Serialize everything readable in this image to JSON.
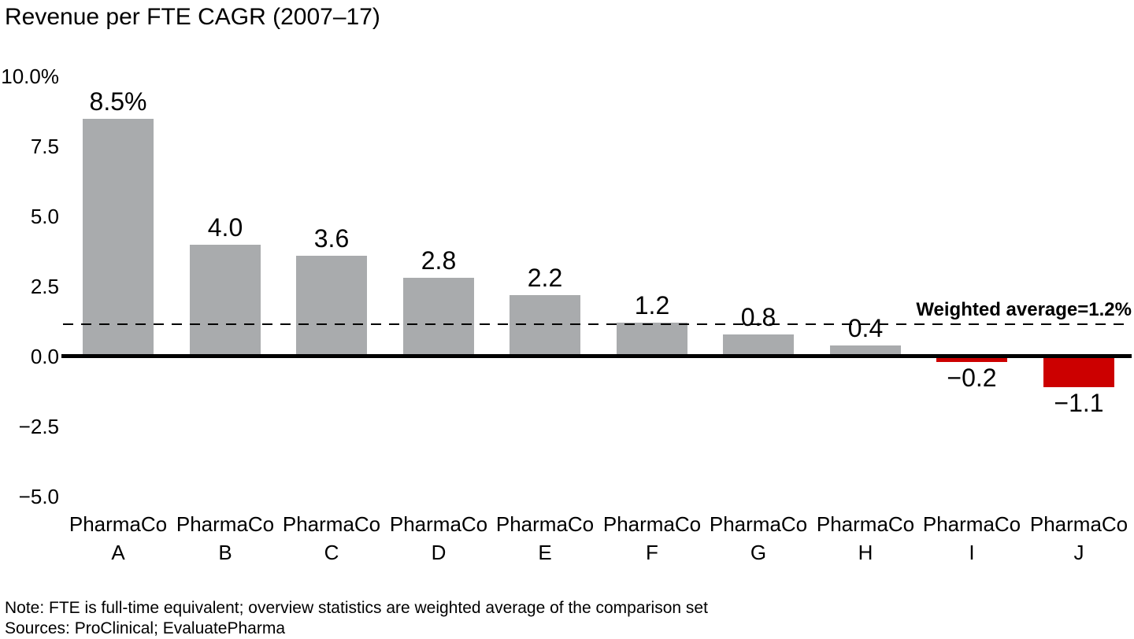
{
  "title": "Revenue per FTE CAGR (2007–17)",
  "chart_data": {
    "type": "bar",
    "title": "Revenue per FTE CAGR (2007–17)",
    "xlabel": "",
    "ylabel": "",
    "ylim": [
      -5.0,
      10.0
    ],
    "grid": false,
    "categories": [
      "PharmaCo A",
      "PharmaCo B",
      "PharmaCo C",
      "PharmaCo D",
      "PharmaCo E",
      "PharmaCo F",
      "PharmaCo G",
      "PharmaCo H",
      "PharmaCo I",
      "PharmaCo J"
    ],
    "bars": [
      {
        "line1": "PharmaCo",
        "line2": "A",
        "value": 8.5,
        "label": "8.5%"
      },
      {
        "line1": "PharmaCo",
        "line2": "B",
        "value": 4.0,
        "label": "4.0"
      },
      {
        "line1": "PharmaCo",
        "line2": "C",
        "value": 3.6,
        "label": "3.6"
      },
      {
        "line1": "PharmaCo",
        "line2": "D",
        "value": 2.8,
        "label": "2.8"
      },
      {
        "line1": "PharmaCo",
        "line2": "E",
        "value": 2.2,
        "label": "2.2"
      },
      {
        "line1": "PharmaCo",
        "line2": "F",
        "value": 1.2,
        "label": "1.2"
      },
      {
        "line1": "PharmaCo",
        "line2": "G",
        "value": 0.8,
        "label": "0.8"
      },
      {
        "line1": "PharmaCo",
        "line2": "H",
        "value": 0.4,
        "label": "0.4"
      },
      {
        "line1": "PharmaCo",
        "line2": "I",
        "value": -0.2,
        "label": "−0.2"
      },
      {
        "line1": "PharmaCo",
        "line2": "J",
        "value": -1.1,
        "label": "−1.1"
      }
    ],
    "yticks": [
      {
        "value": 10.0,
        "label": "10.0%"
      },
      {
        "value": 7.5,
        "label": "7.5"
      },
      {
        "value": 5.0,
        "label": "5.0"
      },
      {
        "value": 2.5,
        "label": "2.5"
      },
      {
        "value": 0.0,
        "label": "0.0"
      },
      {
        "value": -2.5,
        "label": "−2.5"
      },
      {
        "value": -5.0,
        "label": "−5.0"
      }
    ],
    "reference_line": {
      "value": 1.2,
      "label": "Weighted average=1.2%"
    },
    "colors": {
      "positive_bar": "#A9ABAD",
      "negative_bar": "#CC0000",
      "axis": "#000000",
      "text": "#000000"
    }
  },
  "notes": {
    "note": "Note: FTE is full-time equivalent; overview statistics are weighted average of the comparison set",
    "sources": "Sources: ProClinical; EvaluatePharma"
  }
}
